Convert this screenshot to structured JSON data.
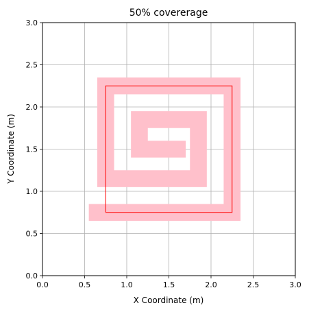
{
  "chart_data": {
    "type": "line",
    "title": "50% covererage",
    "xlabel": "X Coordinate (m)",
    "ylabel": "Y Coordinate (m)",
    "xlim": [
      0,
      3
    ],
    "ylim": [
      0,
      3
    ],
    "xticks": [
      "0.0",
      "0.5",
      "1.0",
      "1.5",
      "2.0",
      "2.5",
      "3.0"
    ],
    "yticks": [
      "0.0",
      "0.5",
      "1.0",
      "1.5",
      "2.0",
      "2.5",
      "3.0"
    ],
    "grid": true,
    "legend": "none",
    "coverage_path": {
      "color": "#ffc0cb",
      "width_m": 0.2,
      "points": [
        [
          0.65,
          0.75
        ],
        [
          2.25,
          0.75
        ],
        [
          2.25,
          2.25
        ],
        [
          0.75,
          2.25
        ],
        [
          0.75,
          1.15
        ],
        [
          1.85,
          1.15
        ],
        [
          1.85,
          1.85
        ],
        [
          1.15,
          1.85
        ],
        [
          1.15,
          1.5
        ],
        [
          1.6,
          1.5
        ]
      ]
    },
    "boundary": {
      "color": "#ff0000",
      "x": [
        0.75,
        2.25,
        2.25,
        0.75,
        0.75
      ],
      "y": [
        0.75,
        0.75,
        2.25,
        2.25,
        0.75
      ]
    }
  }
}
